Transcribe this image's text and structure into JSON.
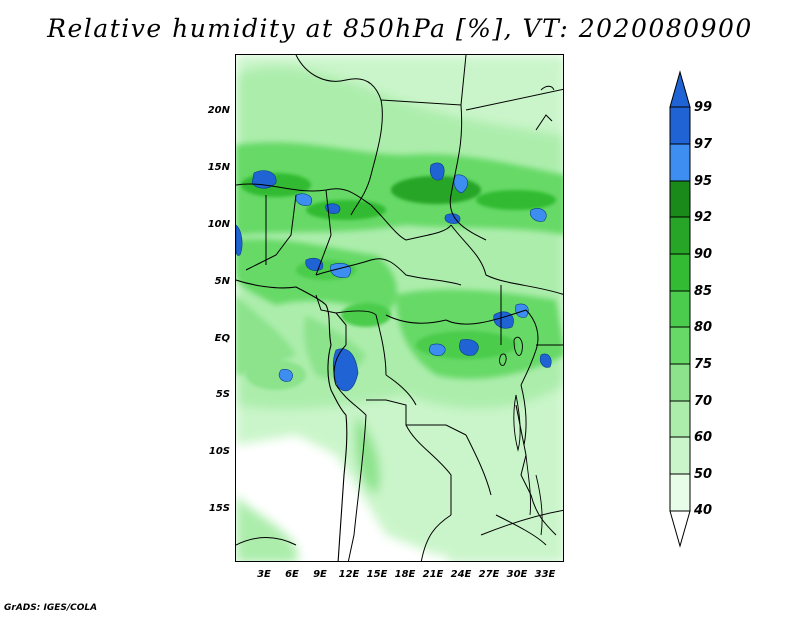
{
  "title": "Relative humidity at 850hPa [%], VT: 2020080900",
  "lat_labels": [
    "20N",
    "15N",
    "10N",
    "5N",
    "EQ",
    "5S",
    "10S",
    "15S"
  ],
  "lon_labels": [
    "3E",
    "6E",
    "9E",
    "12E",
    "15E",
    "18E",
    "21E",
    "24E",
    "27E",
    "30E",
    "33E"
  ],
  "colorbar": {
    "levels": [
      "99",
      "97",
      "95",
      "92",
      "90",
      "85",
      "80",
      "75",
      "70",
      "60",
      "50",
      "40"
    ],
    "colors": [
      "#1f63d4",
      "#3d8ef0",
      "#1a8a1a",
      "#26a526",
      "#33bb33",
      "#4ccc4c",
      "#66d966",
      "#8ce38c",
      "#acedac",
      "#caf5ca",
      "#e8fde8",
      "#ffffff"
    ]
  },
  "credit": "GrADS: IGES/COLA"
}
